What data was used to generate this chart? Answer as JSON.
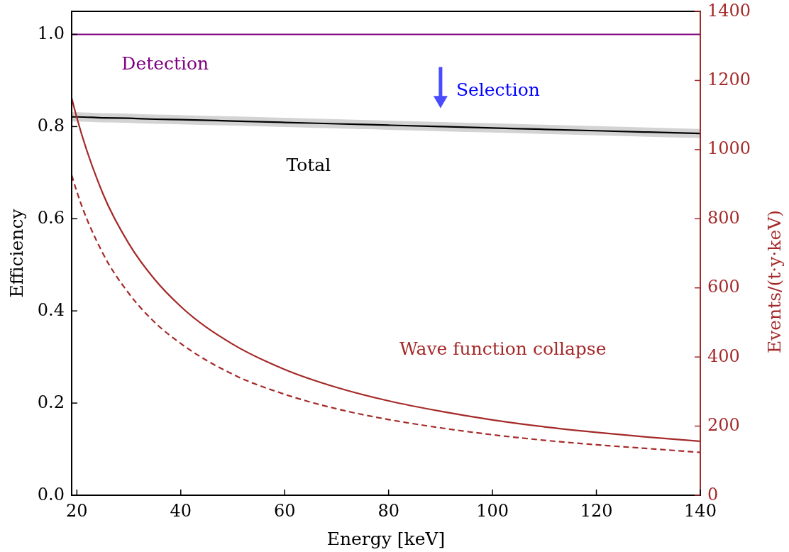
{
  "chart_data": {
    "type": "line",
    "xlabel": "Energy [keV]",
    "ylabel": "Efficiency",
    "y2label": "Events/(t·y·keV)",
    "xlim": [
      19,
      140
    ],
    "xticks": [
      20,
      40,
      60,
      80,
      100,
      120,
      140
    ],
    "ylim": [
      0,
      1.05
    ],
    "yticks": [
      {
        "value": 0,
        "label": "0.0"
      },
      {
        "value": 0.2,
        "label": "0.2"
      },
      {
        "value": 0.4,
        "label": "0.4"
      },
      {
        "value": 0.6,
        "label": "0.6"
      },
      {
        "value": 0.8,
        "label": "0.8"
      },
      {
        "value": 1,
        "label": "1.0"
      }
    ],
    "y2lim": [
      0,
      1400
    ],
    "y2ticks": [
      0,
      200,
      400,
      600,
      800,
      1000,
      1200,
      1400
    ],
    "grid": false,
    "marker": "none",
    "x": [
      19,
      20,
      25,
      30,
      35,
      40,
      50,
      60,
      70,
      80,
      90,
      100,
      110,
      120,
      130,
      140
    ],
    "series": [
      {
        "name": "Detection",
        "color": "#800080",
        "values": [
          1.0,
          1.0,
          1.0,
          1.0,
          1.0,
          1.0,
          1.0,
          1.0,
          1.0,
          1.0,
          1.0,
          1.0,
          1.0,
          1.0,
          1.0,
          1.0
        ]
      },
      {
        "name": "Total",
        "color": "#000000",
        "values": [
          0.821,
          0.821,
          0.819,
          0.818,
          0.816,
          0.815,
          0.812,
          0.809,
          0.806,
          0.803,
          0.8,
          0.797,
          0.794,
          0.791,
          0.788,
          0.785
        ],
        "lower": [
          0.811,
          0.811,
          0.809,
          0.808,
          0.806,
          0.805,
          0.802,
          0.799,
          0.796,
          0.793,
          0.79,
          0.787,
          0.784,
          0.781,
          0.778,
          0.775
        ],
        "upper": [
          0.831,
          0.831,
          0.829,
          0.828,
          0.826,
          0.825,
          0.822,
          0.819,
          0.816,
          0.813,
          0.81,
          0.807,
          0.804,
          0.801,
          0.798,
          0.795
        ]
      },
      {
        "name": "Wave function collapse",
        "color": "#a52a2a",
        "axis": "y2",
        "values": [
          1149,
          1092,
          873,
          728,
          624,
          546,
          437,
          364,
          312,
          273,
          243,
          218,
          198,
          182,
          168,
          156
        ]
      },
      {
        "color": "#a52a2a",
        "axis": "y2",
        "line_style": "dashed",
        "values": [
          926,
          878,
          700,
          584,
          500,
          439,
          350,
          292,
          250,
          219,
          195,
          175,
          159,
          146,
          135,
          124
        ]
      }
    ],
    "annotations": [
      "Selection"
    ]
  }
}
